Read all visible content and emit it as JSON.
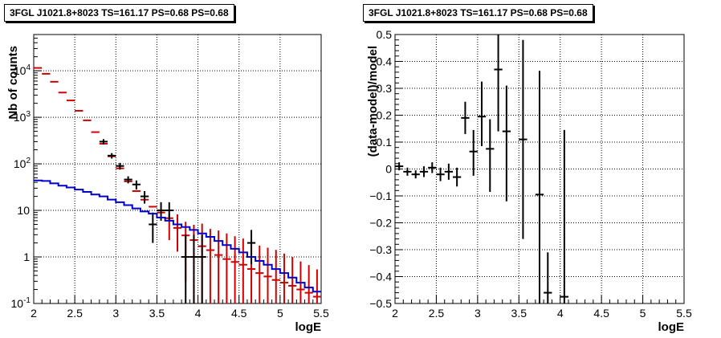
{
  "chart_data": [
    {
      "type": "line",
      "title": "3FGL J1021.8+8023 TS=161.17 PS=0.68 PS=0.68",
      "xlabel": "logE",
      "ylabel": "Nb of counts",
      "xlim": [
        2,
        5.5
      ],
      "ylim": [
        0.1,
        60000
      ],
      "yscale": "log",
      "grid": true,
      "x_ticks": [
        "2",
        "2.5",
        "3",
        "3.5",
        "4",
        "4.5",
        "5",
        "5.5"
      ],
      "y_ticks": [
        "10^-1",
        "1",
        "10",
        "10^2",
        "10^3",
        "10^4"
      ],
      "series": [
        {
          "style": "errorbars",
          "color": "#d00000",
          "x": [
            2.05,
            2.15,
            2.25,
            2.35,
            2.45,
            2.55,
            2.65,
            2.75,
            2.85,
            2.95,
            3.05,
            3.15,
            3.25,
            3.35,
            3.45,
            3.55,
            3.65,
            3.75,
            3.85,
            3.95,
            4.05,
            4.15,
            4.25,
            4.35,
            4.45,
            4.55,
            4.65,
            4.75,
            4.85,
            4.95,
            5.05,
            5.15,
            5.25,
            5.35,
            5.45
          ],
          "y": [
            11500,
            8600,
            5800,
            3400,
            2300,
            1380,
            860,
            480,
            270,
            145,
            80,
            42,
            26,
            17,
            12,
            9.0,
            6.8,
            4.2,
            2.9,
            2.3,
            1.7,
            1.4,
            1.1,
            0.9,
            0.78,
            0.68,
            0.55,
            0.45,
            0.38,
            0.32,
            0.28,
            0.24,
            0.2,
            0.17,
            0.14
          ],
          "yerr_low": [
            0,
            0,
            0,
            0,
            0,
            0,
            0,
            0,
            0,
            0,
            0,
            0,
            0,
            0,
            0,
            0,
            4.5,
            2.9,
            2.6,
            2.2,
            1.65,
            1.39,
            1.09,
            0.89,
            0.77,
            0.675,
            0.545,
            0.445,
            0.375,
            0.315,
            0.275,
            0.235,
            0.195,
            0.165,
            0.135
          ],
          "yerr_high": [
            0,
            0,
            0,
            0,
            0,
            0,
            0,
            0,
            0,
            0,
            0,
            0,
            0,
            0,
            0,
            0,
            2,
            4,
            2.8,
            2.6,
            3.5,
            2.6,
            2.6,
            2.3,
            2.0,
            1.8,
            1.5,
            1.3,
            1.2,
            1.1,
            0.9,
            0.75,
            0.6,
            0.5,
            0.4
          ]
        },
        {
          "style": "errorbars",
          "color": "#000000",
          "x": [
            2.85,
            2.95,
            3.05,
            3.15,
            3.25,
            3.35,
            3.45,
            3.55,
            3.65,
            3.85,
            3.95,
            4.05,
            4.65
          ],
          "y": [
            300,
            150,
            90,
            46,
            36,
            20,
            5,
            10,
            10,
            1,
            1,
            1,
            2
          ],
          "yerr_low": [
            40,
            20,
            15,
            8,
            8,
            6,
            3,
            4,
            4,
            0.9,
            0.9,
            0.9,
            1.3
          ],
          "yerr_high": [
            40,
            20,
            15,
            8,
            8,
            6,
            4,
            5,
            5,
            2,
            2,
            2,
            1.8
          ]
        },
        {
          "style": "step",
          "color": "#0000cc",
          "x": [
            2.05,
            2.15,
            2.25,
            2.35,
            2.45,
            2.55,
            2.65,
            2.75,
            2.85,
            2.95,
            3.05,
            3.15,
            3.25,
            3.35,
            3.45,
            3.55,
            3.65,
            3.75,
            3.85,
            3.95,
            4.05,
            4.15,
            4.25,
            4.35,
            4.45,
            4.55,
            4.65,
            4.75,
            4.85,
            4.95,
            5.05,
            5.15,
            5.25,
            5.35,
            5.45
          ],
          "y": [
            44,
            43,
            38,
            34,
            31,
            28,
            25,
            22,
            20,
            17,
            15,
            13,
            11,
            9.5,
            8.5,
            7,
            6,
            5,
            4.4,
            3.8,
            3.2,
            2.7,
            2.2,
            1.8,
            1.5,
            1.25,
            1.0,
            0.82,
            0.68,
            0.55,
            0.45,
            0.36,
            0.28,
            0.22,
            0.18
          ]
        }
      ]
    },
    {
      "type": "scatter",
      "title": "3FGL J1021.8+8023 TS=161.17 PS=0.68 PS=0.68",
      "xlabel": "logE",
      "ylabel": "(data-model)/model",
      "xlim": [
        2,
        5.5
      ],
      "ylim": [
        -0.5,
        0.5
      ],
      "grid": true,
      "x_ticks": [
        "2",
        "2.5",
        "3",
        "3.5",
        "4",
        "4.5",
        "5",
        "5.5"
      ],
      "y_ticks": [
        "−0.5",
        "−0.4",
        "−0.3",
        "−0.2",
        "−0.1",
        "0",
        "0.1",
        "0.2",
        "0.3",
        "0.4",
        "0.5"
      ],
      "series": [
        {
          "style": "errorbars",
          "color": "#000000",
          "x": [
            2.05,
            2.15,
            2.25,
            2.35,
            2.45,
            2.55,
            2.65,
            2.75,
            2.85,
            2.95,
            3.05,
            3.15,
            3.25,
            3.35,
            3.55,
            3.75,
            3.85,
            4.05
          ],
          "y": [
            0.01,
            -0.01,
            -0.02,
            -0.01,
            0.005,
            -0.02,
            -0.01,
            -0.03,
            0.19,
            0.065,
            0.195,
            0.075,
            0.37,
            0.14,
            0.11,
            -0.095,
            -0.46,
            -0.475
          ],
          "yerr_low": [
            0.015,
            0.015,
            0.015,
            0.02,
            0.02,
            0.025,
            0.03,
            0.035,
            0.06,
            0.09,
            0.11,
            0.16,
            0.23,
            0.26,
            0.37,
            0.405,
            0.04,
            0.025
          ],
          "yerr_high": [
            0.015,
            0.015,
            0.015,
            0.02,
            0.02,
            0.025,
            0.03,
            0.035,
            0.06,
            0.08,
            0.13,
            0.11,
            0.13,
            0.17,
            0.37,
            0.46,
            0.15,
            0.62
          ]
        }
      ]
    }
  ]
}
